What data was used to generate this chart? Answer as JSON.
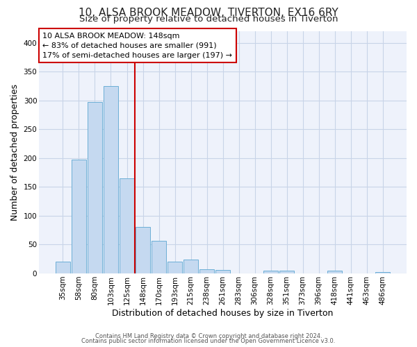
{
  "title": "10, ALSA BROOK MEADOW, TIVERTON, EX16 6RY",
  "subtitle": "Size of property relative to detached houses in Tiverton",
  "xlabel": "Distribution of detached houses by size in Tiverton",
  "ylabel": "Number of detached properties",
  "bar_labels": [
    "35sqm",
    "58sqm",
    "80sqm",
    "103sqm",
    "125sqm",
    "148sqm",
    "170sqm",
    "193sqm",
    "215sqm",
    "238sqm",
    "261sqm",
    "283sqm",
    "306sqm",
    "328sqm",
    "351sqm",
    "373sqm",
    "396sqm",
    "418sqm",
    "441sqm",
    "463sqm",
    "486sqm"
  ],
  "bar_values": [
    20,
    197,
    297,
    325,
    165,
    81,
    57,
    21,
    24,
    7,
    6,
    0,
    0,
    5,
    5,
    0,
    0,
    5,
    0,
    0,
    3
  ],
  "bar_color": "#c5d9f0",
  "bar_edge_color": "#6baed6",
  "vline_color": "#cc0000",
  "annotation_line1": "10 ALSA BROOK MEADOW: 148sqm",
  "annotation_line2": "← 83% of detached houses are smaller (991)",
  "annotation_line3": "17% of semi-detached houses are larger (197) →",
  "annotation_box_color": "#ffffff",
  "annotation_box_edge": "#cc0000",
  "ylim": [
    0,
    420
  ],
  "yticks": [
    0,
    50,
    100,
    150,
    200,
    250,
    300,
    350,
    400
  ],
  "footer1": "Contains HM Land Registry data © Crown copyright and database right 2024.",
  "footer2": "Contains public sector information licensed under the Open Government Licence v3.0.",
  "bg_color": "#ffffff",
  "plot_bg_color": "#eef2fb",
  "title_fontsize": 11,
  "subtitle_fontsize": 9.5,
  "tick_fontsize": 7.5,
  "label_fontsize": 9,
  "annotation_fontsize": 8,
  "footer_fontsize": 6
}
